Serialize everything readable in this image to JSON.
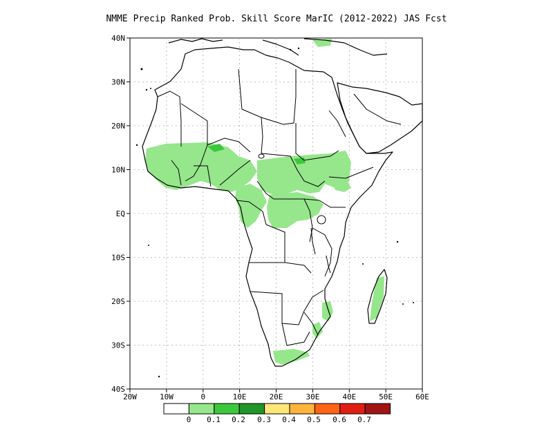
{
  "title": "NMME Precip Ranked Prob. Skill Score MarIC (2012-2022) JAS Fcst",
  "lat_axis": [
    "40N",
    "30N",
    "20N",
    "10N",
    "EQ",
    "10S",
    "20S",
    "30S",
    "40S"
  ],
  "lon_axis": [
    "20W",
    "10W",
    "0",
    "10E",
    "20E",
    "30E",
    "40E",
    "50E",
    "60E"
  ],
  "colorbar": {
    "labels": [
      "0",
      "0.1",
      "0.2",
      "0.3",
      "0.4",
      "0.5",
      "0.6",
      "0.7"
    ],
    "colors": [
      "#ffffff",
      "#96e68c",
      "#3cc83c",
      "#1e9628",
      "#ffe678",
      "#ffb43c",
      "#ff6414",
      "#e11e14",
      "#a01414"
    ]
  }
}
